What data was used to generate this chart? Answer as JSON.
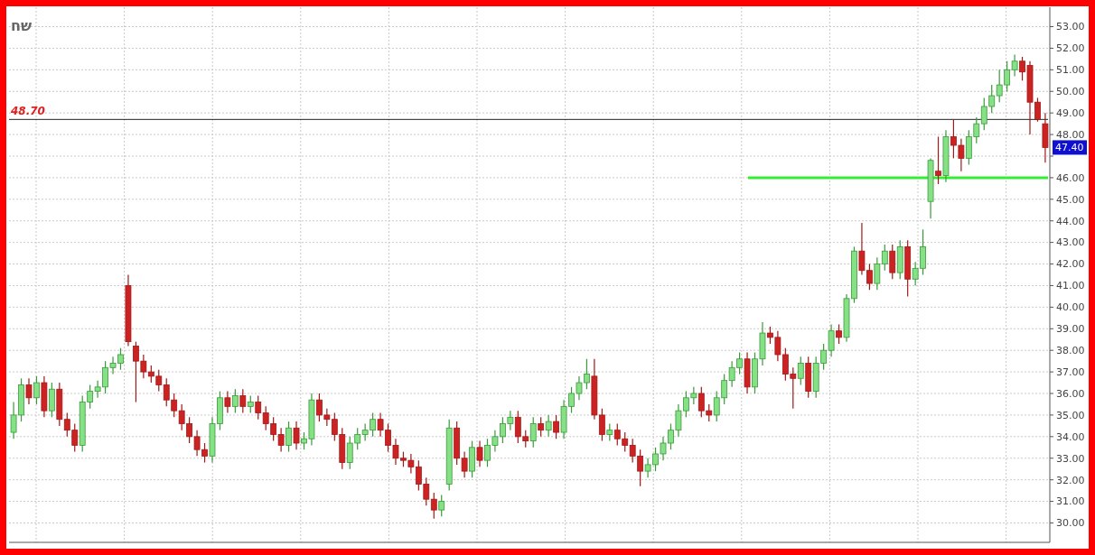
{
  "chart_data": {
    "type": "candlestick",
    "categories": [
      null,
      null,
      null,
      null,
      null,
      null,
      null,
      null,
      null,
      null,
      null,
      null,
      null,
      null,
      null,
      null,
      null,
      null,
      null,
      null,
      null,
      null,
      null,
      null,
      null,
      null,
      null,
      null,
      null,
      null,
      null,
      null,
      null,
      null,
      null,
      null,
      null,
      null,
      null,
      null,
      null,
      null,
      null,
      null,
      null,
      null,
      null,
      null,
      null,
      null,
      null,
      null,
      null,
      null,
      null,
      null,
      null,
      null,
      null,
      null,
      null,
      null,
      null,
      null,
      null,
      null,
      null,
      null,
      null,
      null,
      null,
      null,
      null,
      null,
      null,
      null,
      null,
      null,
      null,
      null,
      null,
      null,
      null,
      null,
      null,
      null,
      null,
      null,
      null,
      null,
      null,
      null,
      null,
      null,
      null,
      null,
      null,
      null,
      null,
      null,
      null,
      null,
      null,
      null,
      null,
      null,
      null,
      null,
      null,
      null,
      null,
      null,
      null,
      null,
      null,
      null,
      null,
      null,
      null,
      null,
      null,
      null,
      null,
      null,
      null,
      null,
      null,
      null,
      null,
      null,
      null,
      null,
      null,
      null,
      null,
      null
    ],
    "ohlc": [
      [
        34.2,
        35.6,
        33.9,
        35.0
      ],
      [
        35.0,
        36.7,
        34.7,
        36.4
      ],
      [
        36.4,
        36.7,
        35.5,
        35.8
      ],
      [
        35.8,
        36.8,
        35.5,
        36.5
      ],
      [
        36.5,
        36.8,
        34.9,
        35.2
      ],
      [
        35.2,
        36.5,
        34.9,
        36.2
      ],
      [
        36.2,
        36.5,
        34.5,
        34.8
      ],
      [
        34.8,
        35.1,
        34.0,
        34.3
      ],
      [
        34.3,
        34.6,
        33.3,
        33.6
      ],
      [
        33.6,
        35.9,
        33.3,
        35.6
      ],
      [
        35.6,
        36.4,
        35.3,
        36.1
      ],
      [
        36.1,
        36.6,
        35.8,
        36.3
      ],
      [
        36.3,
        37.5,
        36.0,
        37.2
      ],
      [
        37.2,
        37.7,
        36.9,
        37.4
      ],
      [
        37.4,
        38.1,
        37.1,
        37.8
      ],
      [
        41.0,
        41.5,
        38.2,
        38.4
      ],
      [
        38.2,
        38.4,
        35.6,
        37.5
      ],
      [
        37.5,
        37.8,
        36.7,
        37.0
      ],
      [
        37.0,
        37.3,
        36.5,
        36.8
      ],
      [
        36.8,
        37.1,
        36.1,
        36.4
      ],
      [
        36.4,
        36.7,
        35.4,
        35.7
      ],
      [
        35.7,
        36.0,
        34.9,
        35.2
      ],
      [
        35.2,
        35.5,
        34.3,
        34.6
      ],
      [
        34.6,
        34.9,
        33.7,
        34.0
      ],
      [
        34.0,
        34.3,
        33.1,
        33.4
      ],
      [
        33.4,
        33.7,
        32.8,
        33.1
      ],
      [
        33.1,
        34.9,
        32.8,
        34.6
      ],
      [
        34.6,
        36.1,
        34.3,
        35.8
      ],
      [
        35.8,
        36.1,
        35.1,
        35.4
      ],
      [
        35.4,
        36.2,
        35.1,
        35.9
      ],
      [
        35.9,
        36.2,
        35.1,
        35.4
      ],
      [
        35.4,
        35.9,
        35.1,
        35.6
      ],
      [
        35.6,
        35.9,
        34.8,
        35.1
      ],
      [
        35.1,
        35.4,
        34.3,
        34.6
      ],
      [
        34.6,
        34.9,
        33.8,
        34.1
      ],
      [
        34.1,
        34.4,
        33.3,
        33.6
      ],
      [
        33.6,
        34.7,
        33.3,
        34.4
      ],
      [
        34.4,
        34.7,
        33.4,
        33.7
      ],
      [
        33.7,
        34.2,
        33.4,
        33.9
      ],
      [
        33.9,
        36.0,
        33.6,
        35.7
      ],
      [
        35.7,
        36.0,
        34.7,
        35.0
      ],
      [
        35.0,
        35.3,
        34.5,
        34.8
      ],
      [
        34.8,
        35.1,
        33.8,
        34.1
      ],
      [
        34.1,
        34.4,
        32.5,
        32.8
      ],
      [
        32.8,
        34.0,
        32.5,
        33.7
      ],
      [
        33.7,
        34.4,
        33.4,
        34.1
      ],
      [
        34.1,
        34.6,
        33.8,
        34.3
      ],
      [
        34.3,
        35.1,
        34.0,
        34.8
      ],
      [
        34.8,
        35.1,
        34.0,
        34.3
      ],
      [
        34.3,
        34.6,
        33.3,
        33.6
      ],
      [
        33.6,
        33.9,
        32.7,
        33.0
      ],
      [
        33.0,
        33.3,
        32.6,
        32.9
      ],
      [
        32.9,
        33.2,
        32.3,
        32.6
      ],
      [
        32.6,
        32.9,
        31.5,
        31.8
      ],
      [
        31.8,
        32.1,
        30.8,
        31.1
      ],
      [
        31.1,
        31.4,
        30.2,
        30.6
      ],
      [
        30.6,
        31.3,
        30.3,
        31.0
      ],
      [
        31.8,
        34.8,
        31.5,
        34.4
      ],
      [
        34.4,
        34.7,
        32.7,
        33.0
      ],
      [
        33.0,
        33.3,
        32.1,
        32.4
      ],
      [
        32.4,
        33.8,
        32.1,
        33.5
      ],
      [
        33.5,
        33.8,
        32.6,
        32.9
      ],
      [
        32.9,
        33.9,
        32.6,
        33.6
      ],
      [
        33.6,
        34.3,
        33.3,
        34.0
      ],
      [
        34.0,
        34.9,
        33.7,
        34.6
      ],
      [
        34.6,
        35.2,
        34.3,
        34.9
      ],
      [
        34.9,
        35.2,
        33.7,
        34.0
      ],
      [
        34.0,
        34.3,
        33.5,
        33.8
      ],
      [
        33.8,
        34.9,
        33.5,
        34.6
      ],
      [
        34.6,
        34.9,
        34.0,
        34.3
      ],
      [
        34.3,
        35.0,
        34.0,
        34.7
      ],
      [
        34.7,
        35.0,
        33.9,
        34.2
      ],
      [
        34.2,
        35.7,
        33.9,
        35.4
      ],
      [
        35.4,
        36.3,
        35.1,
        36.0
      ],
      [
        36.0,
        36.8,
        35.7,
        36.5
      ],
      [
        36.5,
        37.6,
        36.2,
        36.9
      ],
      [
        36.8,
        37.6,
        34.8,
        35.0
      ],
      [
        35.0,
        35.3,
        33.8,
        34.1
      ],
      [
        34.1,
        34.6,
        33.8,
        34.3
      ],
      [
        34.3,
        34.6,
        33.6,
        33.9
      ],
      [
        33.9,
        34.2,
        33.3,
        33.6
      ],
      [
        33.6,
        33.9,
        32.8,
        33.1
      ],
      [
        33.1,
        33.4,
        31.7,
        32.4
      ],
      [
        32.4,
        33.0,
        32.1,
        32.7
      ],
      [
        32.7,
        33.5,
        32.4,
        33.2
      ],
      [
        33.2,
        34.0,
        32.9,
        33.7
      ],
      [
        33.7,
        34.6,
        33.4,
        34.3
      ],
      [
        34.3,
        35.5,
        34.0,
        35.2
      ],
      [
        35.2,
        36.1,
        34.9,
        35.8
      ],
      [
        35.8,
        36.3,
        35.5,
        36.0
      ],
      [
        36.0,
        36.3,
        34.9,
        35.2
      ],
      [
        35.2,
        35.5,
        34.7,
        35.0
      ],
      [
        35.0,
        36.1,
        34.7,
        35.8
      ],
      [
        35.8,
        36.9,
        35.5,
        36.6
      ],
      [
        36.6,
        37.5,
        36.3,
        37.2
      ],
      [
        37.2,
        37.9,
        36.9,
        37.6
      ],
      [
        37.6,
        37.9,
        36.0,
        36.3
      ],
      [
        36.3,
        37.9,
        36.0,
        37.6
      ],
      [
        37.6,
        39.3,
        37.3,
        38.8
      ],
      [
        38.8,
        39.1,
        38.3,
        38.6
      ],
      [
        38.6,
        38.9,
        37.5,
        37.8
      ],
      [
        37.8,
        38.1,
        36.6,
        36.9
      ],
      [
        36.9,
        37.2,
        35.3,
        36.7
      ],
      [
        36.7,
        37.7,
        36.4,
        37.4
      ],
      [
        37.4,
        37.7,
        35.8,
        36.1
      ],
      [
        36.1,
        37.7,
        35.8,
        37.4
      ],
      [
        37.4,
        38.3,
        37.1,
        38.0
      ],
      [
        38.0,
        39.2,
        37.7,
        38.9
      ],
      [
        38.9,
        39.2,
        38.3,
        38.6
      ],
      [
        38.6,
        40.6,
        38.4,
        40.4
      ],
      [
        40.4,
        42.8,
        40.2,
        42.6
      ],
      [
        42.6,
        43.9,
        41.5,
        41.7
      ],
      [
        41.7,
        42.0,
        40.8,
        41.1
      ],
      [
        41.1,
        42.3,
        40.8,
        42.0
      ],
      [
        42.0,
        42.9,
        41.7,
        42.6
      ],
      [
        42.6,
        42.9,
        41.3,
        41.6
      ],
      [
        41.6,
        43.1,
        41.3,
        42.8
      ],
      [
        42.8,
        43.1,
        40.5,
        41.3
      ],
      [
        41.3,
        42.1,
        41.0,
        41.8
      ],
      [
        41.8,
        43.6,
        41.5,
        42.8
      ],
      [
        44.9,
        46.9,
        44.1,
        46.8
      ],
      [
        46.3,
        47.9,
        45.7,
        46.1
      ],
      [
        46.1,
        48.2,
        45.8,
        47.9
      ],
      [
        47.9,
        48.7,
        46.9,
        47.5
      ],
      [
        47.5,
        47.8,
        46.3,
        46.9
      ],
      [
        46.9,
        48.2,
        46.6,
        47.9
      ],
      [
        47.9,
        48.8,
        47.6,
        48.5
      ],
      [
        48.5,
        49.7,
        48.2,
        49.3
      ],
      [
        49.3,
        50.3,
        49.0,
        49.8
      ],
      [
        49.8,
        51.0,
        49.5,
        50.3
      ],
      [
        50.3,
        51.4,
        50.0,
        51.0
      ],
      [
        51.0,
        51.7,
        50.7,
        51.4
      ],
      [
        51.4,
        51.6,
        50.5,
        50.9
      ],
      [
        51.2,
        51.4,
        48.0,
        49.5
      ],
      [
        49.5,
        49.7,
        48.6,
        48.7
      ],
      [
        48.5,
        49.0,
        46.7,
        47.4
      ]
    ],
    "ylim": [
      29.1,
      53.9
    ],
    "yticks": [
      {
        "value": 30,
        "label": "30.00"
      },
      {
        "value": 31,
        "label": "31.00"
      },
      {
        "value": 32,
        "label": "32.00"
      },
      {
        "value": 33,
        "label": "33.00"
      },
      {
        "value": 34,
        "label": "34.00"
      },
      {
        "value": 35,
        "label": "35.00"
      },
      {
        "value": 36,
        "label": "36.00"
      },
      {
        "value": 37,
        "label": "37.00"
      },
      {
        "value": 38,
        "label": "38.00"
      },
      {
        "value": 39,
        "label": "39.00"
      },
      {
        "value": 40,
        "label": "40.00"
      },
      {
        "value": 41,
        "label": "41.00"
      },
      {
        "value": 42,
        "label": "42.00"
      },
      {
        "value": 43,
        "label": "43.00"
      },
      {
        "value": 44,
        "label": "44.00"
      },
      {
        "value": 45,
        "label": "45.00"
      },
      {
        "value": 46,
        "label": "46.00"
      },
      {
        "value": 47,
        "label": null
      },
      {
        "value": 48,
        "label": "48.00"
      },
      {
        "value": 49,
        "label": "49.00"
      },
      {
        "value": 50,
        "label": "50.00"
      },
      {
        "value": 51,
        "label": "51.00"
      },
      {
        "value": 52,
        "label": "52.00"
      },
      {
        "value": 53,
        "label": "53.00"
      }
    ],
    "grid": true,
    "ref_lines": [
      {
        "axis": "y",
        "value": 48.7,
        "label": "48.70",
        "color": "#222222"
      },
      {
        "axis": "y",
        "value": 46,
        "label": null,
        "color": "#33ee33"
      }
    ],
    "annotations": [
      "שח",
      {
        "text": "47.40",
        "y": 47.4
      }
    ]
  }
}
